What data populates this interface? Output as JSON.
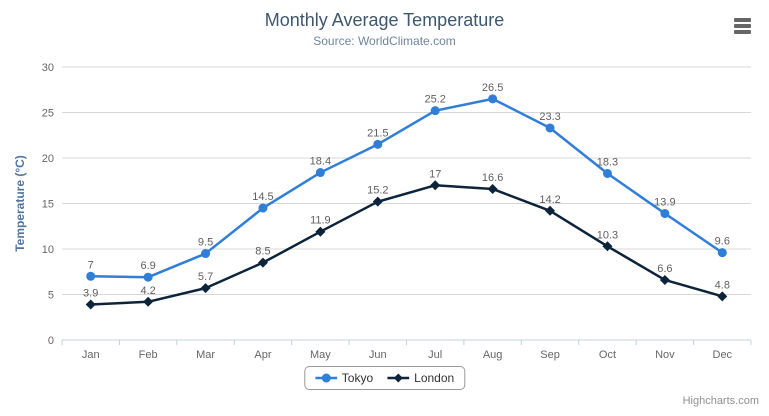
{
  "chart_data": {
    "type": "line",
    "title": "Monthly Average Temperature",
    "subtitle": "Source: WorldClimate.com",
    "ylabel": "Temperature (°C)",
    "xlabel": "",
    "categories": [
      "Jan",
      "Feb",
      "Mar",
      "Apr",
      "May",
      "Jun",
      "Jul",
      "Aug",
      "Sep",
      "Oct",
      "Nov",
      "Dec"
    ],
    "series": [
      {
        "name": "Tokyo",
        "marker": "circle",
        "color": "#2f7ed8",
        "values": [
          7,
          6.9,
          9.5,
          14.5,
          18.4,
          21.5,
          25.2,
          26.5,
          23.3,
          18.3,
          13.9,
          9.6
        ]
      },
      {
        "name": "London",
        "marker": "diamond",
        "color": "#0d233a",
        "values": [
          3.9,
          4.2,
          5.7,
          8.5,
          11.9,
          15.2,
          17,
          16.6,
          14.2,
          10.3,
          6.6,
          4.8
        ]
      }
    ],
    "ylim": [
      0,
      30
    ],
    "ytick_interval": 5,
    "grid": true,
    "data_labels": true,
    "legend_position": "bottom-center",
    "credits": "Highcharts.com",
    "menu_icon": "hamburger-menu-icon",
    "colors": {
      "title": "#3E576F",
      "subtitle": "#6D869F",
      "axis_title": "#4d759e",
      "axis_label": "#666666",
      "data_label": "#606060",
      "grid_line": "#D8D8D8",
      "axis_line": "#C0D0E0",
      "legend_text": "#333333",
      "legend_border": "#999999",
      "credits_text": "#909090",
      "menu_icon": "#666666"
    }
  }
}
